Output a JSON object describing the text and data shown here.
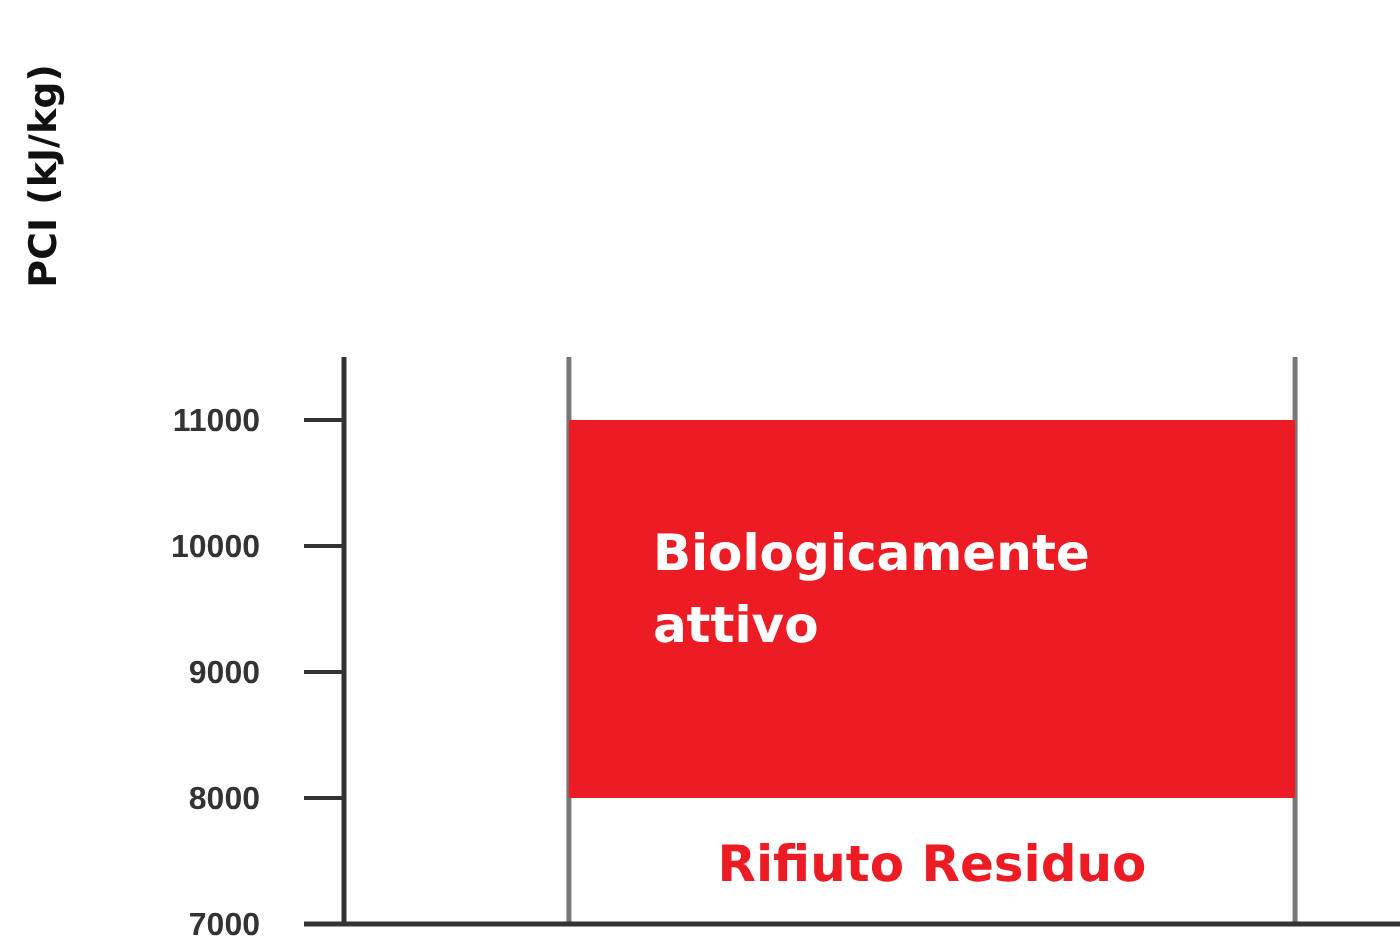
{
  "chart_data": {
    "type": "bar",
    "ylabel": "PCI (kJ/kg)",
    "categories": [
      null
    ],
    "series": [
      {
        "name": "Biologicamente attivo",
        "color": "#ed1c24",
        "values": [
          3000
        ],
        "base": [
          8000
        ]
      }
    ],
    "ylim": [
      7000,
      11500
    ],
    "yticks": [
      7000,
      8000,
      9000,
      10000,
      11000
    ],
    "grid": false,
    "annotations": [
      "Rifiuto Residuo"
    ]
  }
}
